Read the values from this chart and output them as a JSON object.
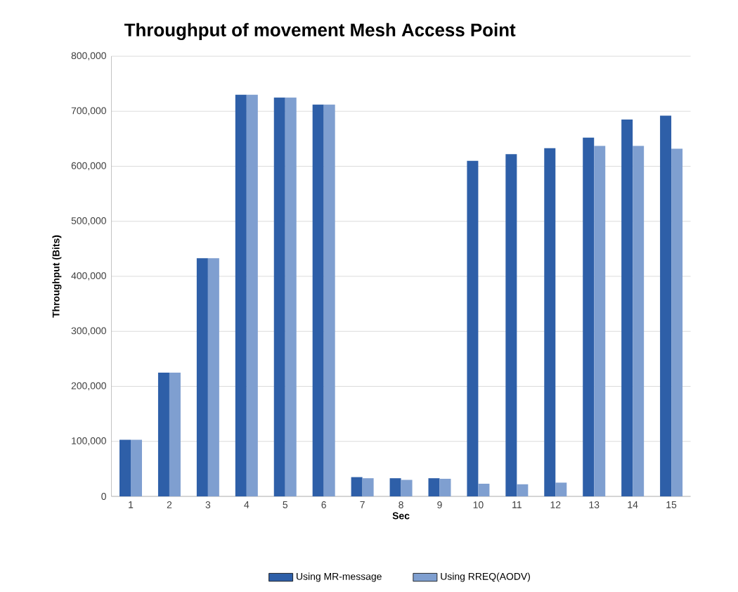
{
  "chart_data": {
    "type": "bar",
    "title": "Throughput of movement Mesh Access Point",
    "xlabel": "Sec",
    "ylabel": "Throughput (Bits)",
    "categories": [
      "1",
      "2",
      "3",
      "4",
      "5",
      "6",
      "7",
      "8",
      "9",
      "10",
      "11",
      "12",
      "13",
      "14",
      "15"
    ],
    "series": [
      {
        "name": "Using MR-message",
        "color": "#2e5fa8",
        "values": [
          103000,
          225000,
          433000,
          730000,
          725000,
          712000,
          35000,
          33000,
          33000,
          610000,
          622000,
          633000,
          652000,
          685000,
          692000
        ]
      },
      {
        "name": "Using RREQ(AODV)",
        "color": "#7f9fd0",
        "values": [
          103000,
          225000,
          433000,
          730000,
          725000,
          712000,
          33000,
          30000,
          32000,
          23000,
          22000,
          25000,
          637000,
          637000,
          632000
        ]
      }
    ],
    "ylim": [
      0,
      800000
    ],
    "yticks": [
      0,
      {
        "value": 100000,
        "label": "100,000"
      },
      {
        "value": 200000,
        "label": "200,000"
      },
      {
        "value": 300000,
        "label": "300,000"
      },
      {
        "value": 400000,
        "label": "400,000"
      },
      {
        "value": 500000,
        "label": "500,000"
      },
      {
        "value": 600000,
        "label": "600,000"
      },
      {
        "value": 700000,
        "label": "700,000"
      },
      {
        "value": 800000,
        "label": "800,000"
      }
    ],
    "grid": "y",
    "legend": "bottom"
  }
}
